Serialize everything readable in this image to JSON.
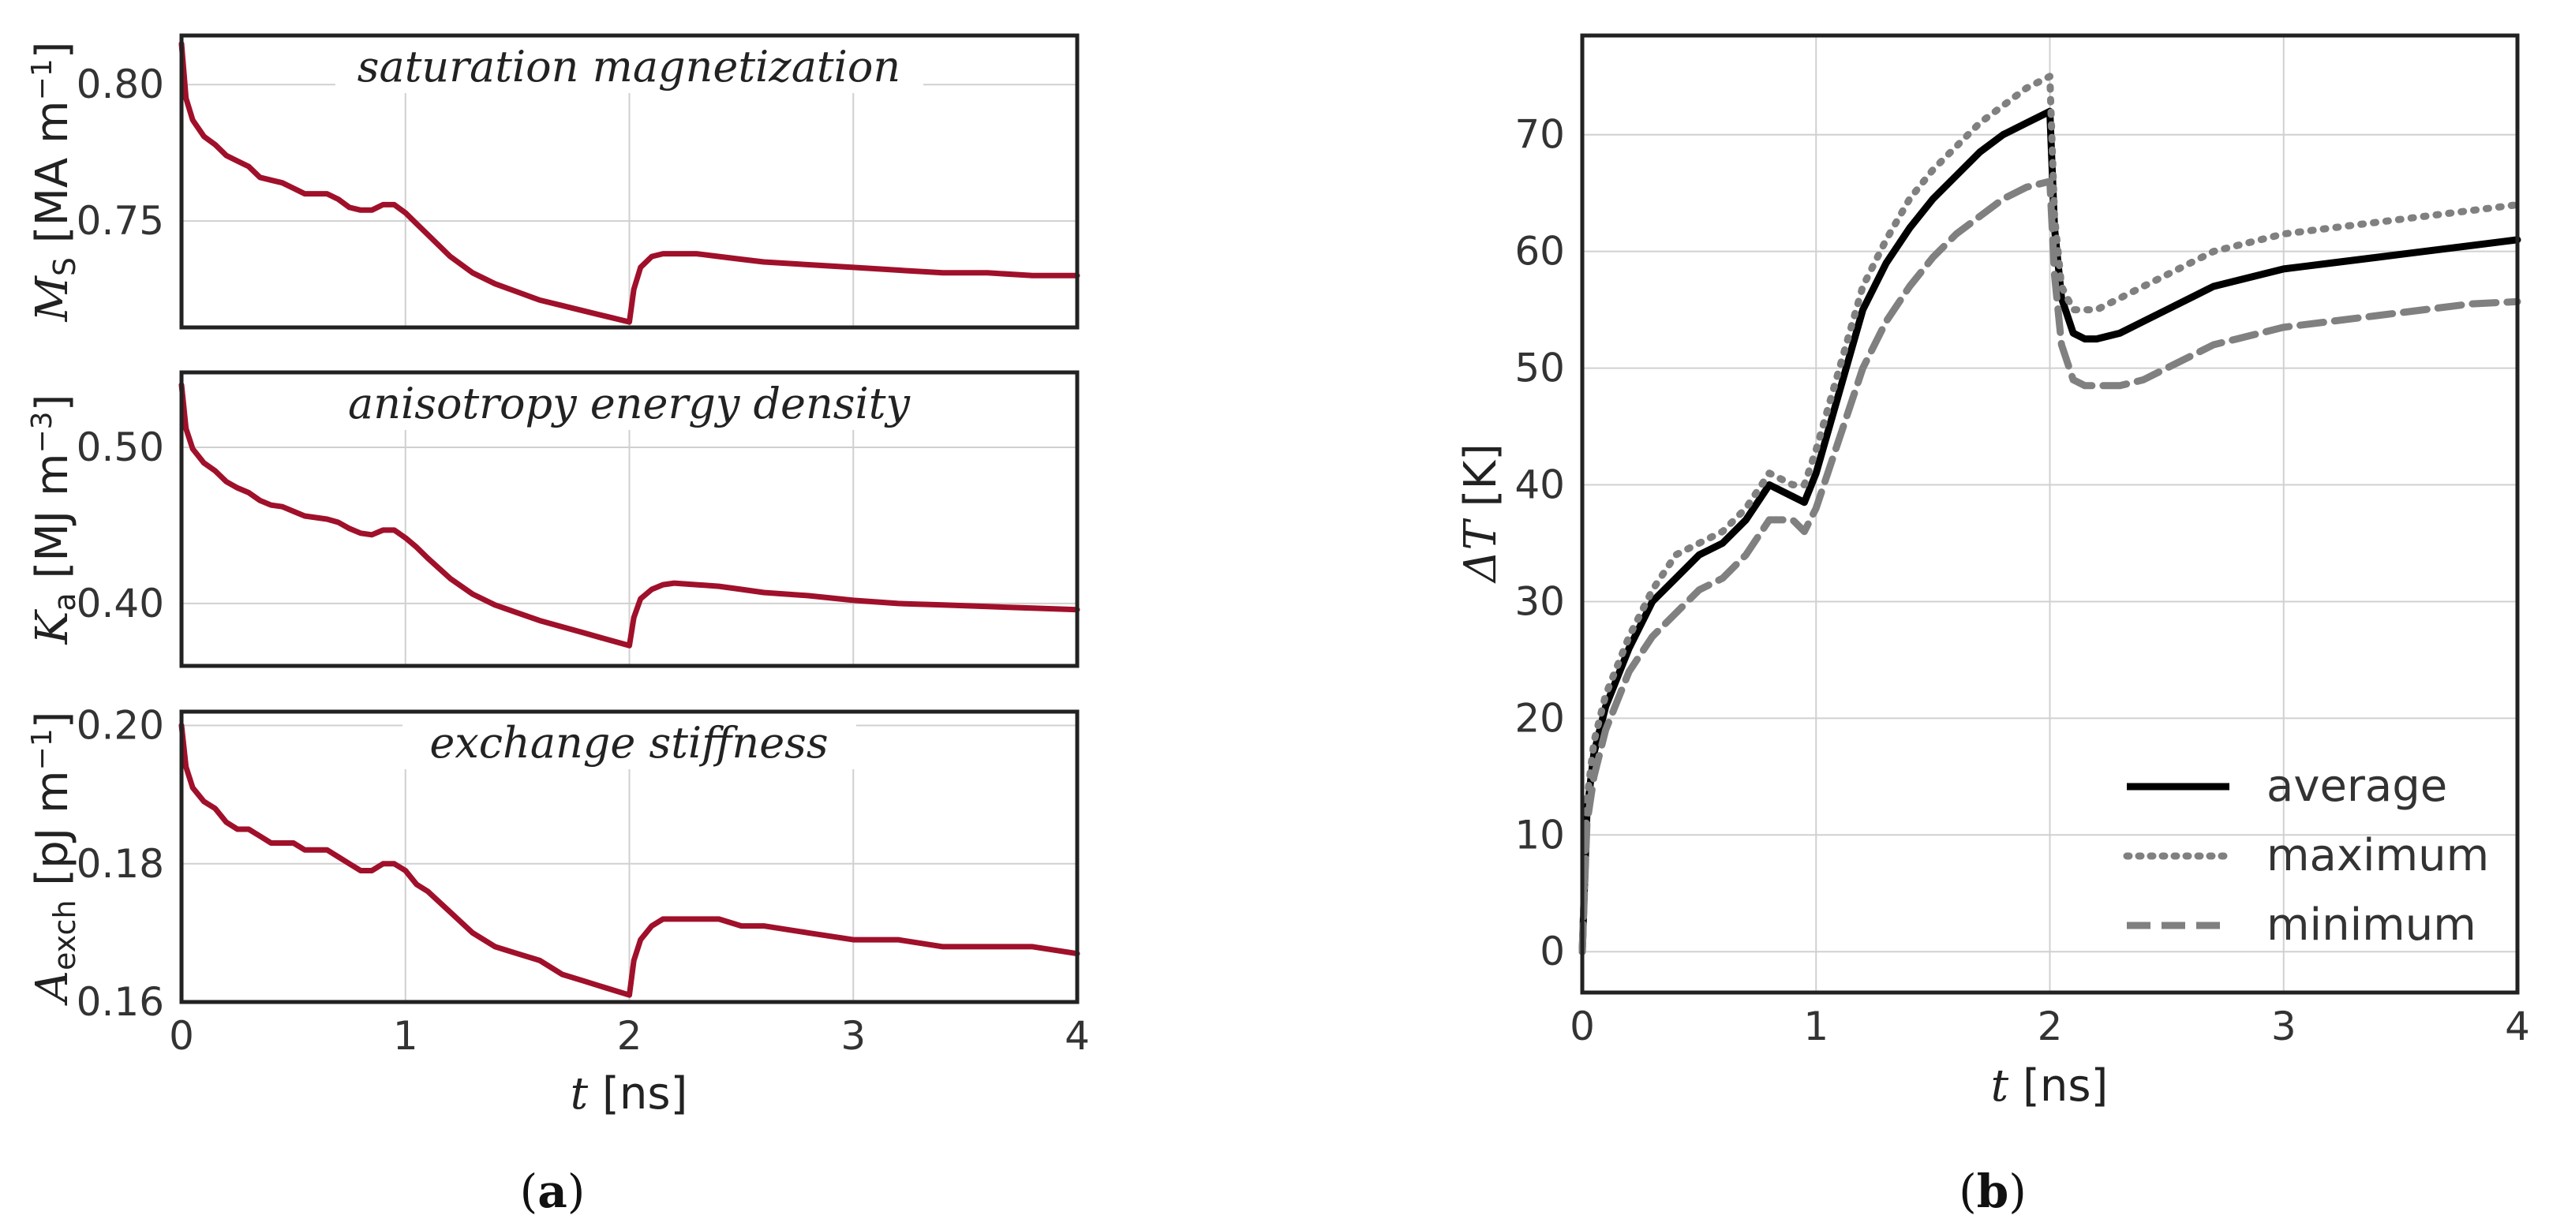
{
  "chart_data": [
    {
      "type": "line",
      "id": "saturation",
      "title": "saturation magnetization",
      "ylabel_sym": "M",
      "ylabel_sub": "S",
      "ylabel_unit": " [MA m",
      "ylabel_exp": "−1",
      "ylabel_close": "]",
      "xlim": [
        0,
        4
      ],
      "ylim": [
        0.711,
        0.818
      ],
      "yticks": [
        0.75,
        0.8
      ],
      "ytick_labels": [
        "0.75",
        "0.80"
      ],
      "series": [
        {
          "name": "saturation magnetization",
          "color": "#a0102a",
          "x": [
            0,
            0.02,
            0.05,
            0.1,
            0.15,
            0.2,
            0.25,
            0.3,
            0.35,
            0.4,
            0.45,
            0.5,
            0.55,
            0.6,
            0.65,
            0.7,
            0.75,
            0.8,
            0.85,
            0.9,
            0.95,
            1.0,
            1.05,
            1.1,
            1.2,
            1.3,
            1.4,
            1.5,
            1.6,
            1.7,
            1.8,
            1.9,
            2.0,
            2.02,
            2.05,
            2.1,
            2.15,
            2.2,
            2.3,
            2.4,
            2.5,
            2.6,
            2.8,
            3.0,
            3.2,
            3.4,
            3.6,
            3.8,
            4.0
          ],
          "y": [
            0.815,
            0.795,
            0.787,
            0.781,
            0.778,
            0.774,
            0.772,
            0.77,
            0.766,
            0.765,
            0.764,
            0.762,
            0.76,
            0.76,
            0.76,
            0.758,
            0.755,
            0.754,
            0.754,
            0.756,
            0.756,
            0.753,
            0.749,
            0.745,
            0.737,
            0.731,
            0.727,
            0.724,
            0.721,
            0.719,
            0.717,
            0.715,
            0.713,
            0.725,
            0.733,
            0.737,
            0.738,
            0.738,
            0.738,
            0.737,
            0.736,
            0.735,
            0.734,
            0.733,
            0.732,
            0.731,
            0.731,
            0.73,
            0.73
          ]
        }
      ]
    },
    {
      "type": "line",
      "id": "anisotropy",
      "title": "anisotropy energy density",
      "ylabel_sym": "K",
      "ylabel_sub": "a",
      "ylabel_unit": " [MJ m",
      "ylabel_exp": "−3",
      "ylabel_close": "]",
      "xlim": [
        0,
        4
      ],
      "ylim": [
        0.36,
        0.548
      ],
      "yticks": [
        0.4,
        0.5
      ],
      "ytick_labels": [
        "0.40",
        "0.50"
      ],
      "series": [
        {
          "name": "anisotropy energy density",
          "color": "#a0102a",
          "x": [
            0,
            0.02,
            0.05,
            0.1,
            0.15,
            0.2,
            0.25,
            0.3,
            0.35,
            0.4,
            0.45,
            0.5,
            0.55,
            0.6,
            0.65,
            0.7,
            0.75,
            0.8,
            0.85,
            0.9,
            0.95,
            1.0,
            1.05,
            1.1,
            1.2,
            1.3,
            1.4,
            1.5,
            1.6,
            1.7,
            1.8,
            1.9,
            2.0,
            2.02,
            2.05,
            2.1,
            2.15,
            2.2,
            2.3,
            2.4,
            2.5,
            2.6,
            2.8,
            3.0,
            3.2,
            3.4,
            3.6,
            3.8,
            4.0
          ],
          "y": [
            0.54,
            0.512,
            0.499,
            0.49,
            0.485,
            0.478,
            0.474,
            0.471,
            0.466,
            0.463,
            0.462,
            0.459,
            0.456,
            0.455,
            0.454,
            0.452,
            0.448,
            0.445,
            0.444,
            0.447,
            0.447,
            0.442,
            0.436,
            0.429,
            0.416,
            0.406,
            0.399,
            0.394,
            0.389,
            0.385,
            0.381,
            0.377,
            0.373,
            0.391,
            0.403,
            0.409,
            0.412,
            0.413,
            0.412,
            0.411,
            0.409,
            0.407,
            0.405,
            0.402,
            0.4,
            0.399,
            0.398,
            0.397,
            0.396
          ]
        }
      ]
    },
    {
      "type": "line",
      "id": "exchange",
      "title": "exchange stiffness",
      "ylabel_sym": "A",
      "ylabel_sub": "exch",
      "ylabel_unit": " [pJ m",
      "ylabel_exp": "−1",
      "ylabel_close": "]",
      "xlim": [
        0,
        4
      ],
      "xticks": [
        0,
        1,
        2,
        3,
        4
      ],
      "xtick_labels": [
        "0",
        "1",
        "2",
        "3",
        "4"
      ],
      "xlabel_sym": "t",
      "xlabel_unit": " [ns]",
      "ylim": [
        0.16,
        0.202
      ],
      "yticks": [
        0.16,
        0.18,
        0.2
      ],
      "ytick_labels": [
        "0.16",
        "0.18",
        "0.20"
      ],
      "series": [
        {
          "name": "exchange stiffness",
          "color": "#a0102a",
          "x": [
            0,
            0.02,
            0.05,
            0.1,
            0.15,
            0.2,
            0.25,
            0.3,
            0.35,
            0.4,
            0.45,
            0.5,
            0.55,
            0.6,
            0.65,
            0.7,
            0.75,
            0.8,
            0.85,
            0.9,
            0.95,
            1.0,
            1.05,
            1.1,
            1.2,
            1.3,
            1.4,
            1.5,
            1.6,
            1.7,
            1.8,
            1.9,
            2.0,
            2.02,
            2.05,
            2.1,
            2.15,
            2.2,
            2.3,
            2.4,
            2.5,
            2.6,
            2.8,
            3.0,
            3.2,
            3.4,
            3.6,
            3.8,
            4.0
          ],
          "y": [
            0.2,
            0.194,
            0.191,
            0.189,
            0.188,
            0.186,
            0.185,
            0.185,
            0.184,
            0.183,
            0.183,
            0.183,
            0.182,
            0.182,
            0.182,
            0.181,
            0.18,
            0.179,
            0.179,
            0.18,
            0.18,
            0.179,
            0.177,
            0.176,
            0.173,
            0.17,
            0.168,
            0.167,
            0.166,
            0.164,
            0.163,
            0.162,
            0.161,
            0.166,
            0.169,
            0.171,
            0.172,
            0.172,
            0.172,
            0.172,
            0.171,
            0.171,
            0.17,
            0.169,
            0.169,
            0.168,
            0.168,
            0.168,
            0.167
          ]
        }
      ]
    },
    {
      "type": "line",
      "id": "temperature",
      "xlabel_sym": "t",
      "xlabel_unit": " [ns]",
      "ylabel_sym": "ΔT",
      "ylabel_unit": " [K]",
      "xlim": [
        0,
        4
      ],
      "ylim": [
        -3.5,
        78.5
      ],
      "xticks": [
        0,
        1,
        2,
        3,
        4
      ],
      "xtick_labels": [
        "0",
        "1",
        "2",
        "3",
        "4"
      ],
      "yticks": [
        0,
        10,
        20,
        30,
        40,
        50,
        60,
        70
      ],
      "ytick_labels": [
        "0",
        "10",
        "20",
        "30",
        "40",
        "50",
        "60",
        "70"
      ],
      "legend_position": "lower right",
      "series": [
        {
          "name": "average",
          "color": "#000000",
          "style": "solid",
          "x": [
            0,
            0.02,
            0.05,
            0.1,
            0.2,
            0.3,
            0.4,
            0.5,
            0.6,
            0.7,
            0.8,
            0.9,
            0.95,
            1.0,
            1.1,
            1.2,
            1.3,
            1.4,
            1.5,
            1.6,
            1.7,
            1.8,
            1.9,
            2.0,
            2.02,
            2.05,
            2.1,
            2.15,
            2.2,
            2.3,
            2.4,
            2.5,
            2.6,
            2.7,
            2.8,
            3.0,
            3.2,
            3.4,
            3.6,
            3.8,
            4.0
          ],
          "y": [
            0,
            12,
            17,
            21,
            26,
            30,
            32,
            34,
            35,
            37,
            40,
            39,
            38.5,
            41,
            48,
            55,
            59,
            62,
            64.5,
            66.5,
            68.5,
            70,
            71,
            72,
            62,
            56,
            53,
            52.5,
            52.5,
            53,
            54,
            55,
            56,
            57,
            57.5,
            58.5,
            59,
            59.5,
            60,
            60.5,
            61
          ]
        },
        {
          "name": "maximum",
          "color": "#808080",
          "style": "dotted",
          "x": [
            0,
            0.02,
            0.05,
            0.1,
            0.2,
            0.3,
            0.4,
            0.5,
            0.6,
            0.7,
            0.8,
            0.9,
            0.95,
            1.0,
            1.1,
            1.2,
            1.3,
            1.4,
            1.5,
            1.6,
            1.7,
            1.8,
            1.9,
            2.0,
            2.02,
            2.05,
            2.1,
            2.15,
            2.2,
            2.3,
            2.4,
            2.5,
            2.6,
            2.7,
            2.8,
            3.0,
            3.2,
            3.4,
            3.6,
            3.8,
            4.0
          ],
          "y": [
            0,
            13,
            18,
            22,
            27,
            31,
            34,
            35,
            36,
            38,
            41,
            40,
            40,
            43,
            50,
            57,
            61,
            64.5,
            67,
            69,
            71,
            72.5,
            74,
            75,
            63,
            57,
            55,
            55,
            55,
            56,
            57,
            58,
            59,
            60,
            60.5,
            61.5,
            62,
            62.5,
            63,
            63.5,
            64
          ]
        },
        {
          "name": "minimum",
          "color": "#808080",
          "style": "dashed",
          "x": [
            0,
            0.02,
            0.05,
            0.1,
            0.2,
            0.3,
            0.4,
            0.5,
            0.6,
            0.7,
            0.8,
            0.9,
            0.95,
            1.0,
            1.1,
            1.2,
            1.3,
            1.4,
            1.5,
            1.6,
            1.7,
            1.8,
            1.9,
            2.0,
            2.02,
            2.05,
            2.1,
            2.15,
            2.2,
            2.3,
            2.4,
            2.5,
            2.6,
            2.7,
            2.8,
            3.0,
            3.2,
            3.4,
            3.6,
            3.8,
            4.0
          ],
          "y": [
            0,
            11,
            15,
            19,
            24,
            27,
            29,
            31,
            32,
            34,
            37,
            37,
            36,
            38,
            44,
            50,
            54,
            57,
            59.5,
            61.5,
            63,
            64.5,
            65.5,
            66,
            58,
            52,
            49,
            48.5,
            48.5,
            48.5,
            49,
            50,
            51,
            52,
            52.5,
            53.5,
            54,
            54.5,
            55,
            55.5,
            55.7
          ]
        }
      ]
    }
  ],
  "panel_labels": {
    "a_open": "(",
    "a": "a",
    "a_close": ")",
    "b_open": "(",
    "b": "b",
    "b_close": ")"
  }
}
